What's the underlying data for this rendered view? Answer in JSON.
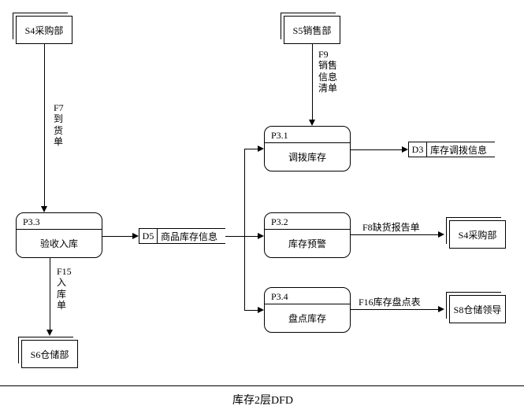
{
  "title": "库存2层DFD",
  "entities": {
    "s4_top": {
      "label": "S4采购部"
    },
    "s5": {
      "label": "S5销售部"
    },
    "s6": {
      "label": "S6仓储部"
    },
    "s4_right": {
      "label": "S4采购部"
    },
    "s8": {
      "label": "S8仓储领导"
    }
  },
  "processes": {
    "p33": {
      "id": "P3.3",
      "name": "验收入库"
    },
    "p31": {
      "id": "P3.1",
      "name": "调拨库存"
    },
    "p32": {
      "id": "P3.2",
      "name": "库存预警"
    },
    "p34": {
      "id": "P3.4",
      "name": "盘点库存"
    }
  },
  "stores": {
    "d5": {
      "id": "D5",
      "label": "商品库存信息"
    },
    "d3": {
      "id": "D3",
      "label": "库存调拨信息"
    }
  },
  "flows": {
    "f7": {
      "label": "F7\n到\n货\n单"
    },
    "f9": {
      "label": "F9\n销售\n信息\n清单"
    },
    "f15": {
      "label": "F15\n入\n库\n单"
    },
    "f8": {
      "label": "F8缺货报告单"
    },
    "f16": {
      "label": "F16库存盘点表"
    }
  }
}
